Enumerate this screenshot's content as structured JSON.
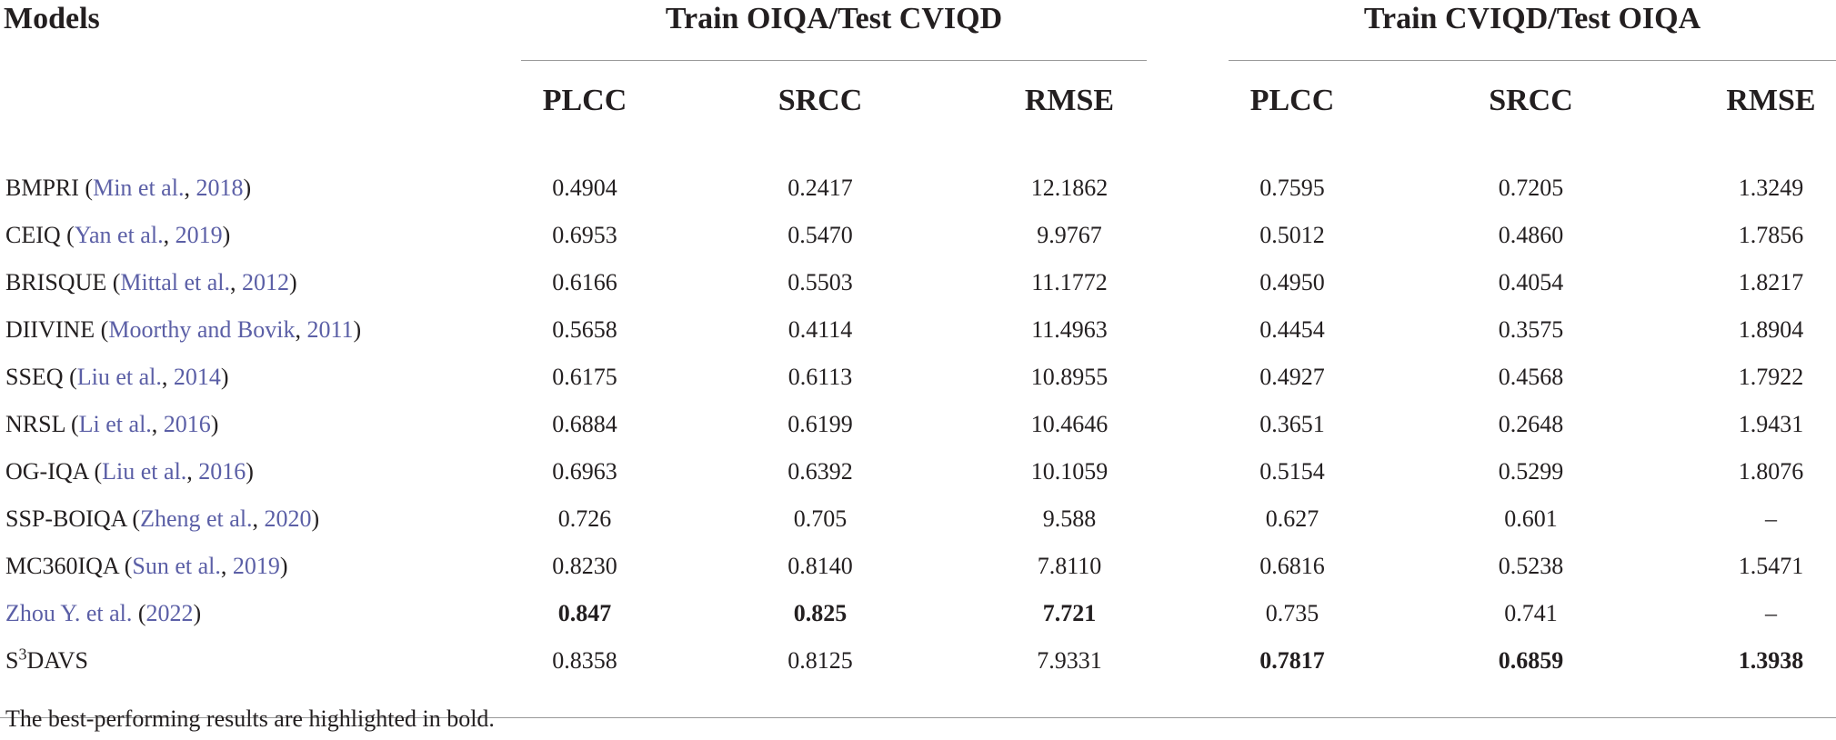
{
  "header": {
    "models_label": "Models",
    "group1_title": "Train OIQA/Test CVIQD",
    "group2_title": "Train CVIQD/Test OIQA",
    "metrics": [
      "PLCC",
      "SRCC",
      "RMSE",
      "PLCC",
      "SRCC",
      "RMSE"
    ]
  },
  "rows": [
    {
      "name": "BMPRI (",
      "ref": "Min et al.",
      "sep": ", ",
      "year": "2018",
      "close": ")",
      "values": [
        "0.4904",
        "0.2417",
        "12.1862",
        "0.7595",
        "0.7205",
        "1.3249"
      ]
    },
    {
      "name": "CEIQ (",
      "ref": "Yan et al.",
      "sep": ", ",
      "year": "2019",
      "close": ")",
      "values": [
        "0.6953",
        "0.5470",
        "9.9767",
        "0.5012",
        "0.4860",
        "1.7856"
      ]
    },
    {
      "name": "BRISQUE (",
      "ref": "Mittal et al.",
      "sep": ", ",
      "year": "2012",
      "close": ")",
      "values": [
        "0.6166",
        "0.5503",
        "11.1772",
        "0.4950",
        "0.4054",
        "1.8217"
      ]
    },
    {
      "name": "DIIVINE (",
      "ref": "Moorthy and Bovik",
      "sep": ", ",
      "year": "2011",
      "close": ")",
      "values": [
        "0.5658",
        "0.4114",
        "11.4963",
        "0.4454",
        "0.3575",
        "1.8904"
      ]
    },
    {
      "name": "SSEQ (",
      "ref": "Liu et al.",
      "sep": ", ",
      "year": "2014",
      "close": ")",
      "values": [
        "0.6175",
        "0.6113",
        "10.8955",
        "0.4927",
        "0.4568",
        "1.7922"
      ]
    },
    {
      "name": "NRSL (",
      "ref": "Li et al.",
      "sep": ", ",
      "year": "2016",
      "close": ")",
      "values": [
        "0.6884",
        "0.6199",
        "10.4646",
        "0.3651",
        "0.2648",
        "1.9431"
      ]
    },
    {
      "name": "OG-IQA (",
      "ref": "Liu et al.",
      "sep": ", ",
      "year": "2016",
      "close": ")",
      "values": [
        "0.6963",
        "0.6392",
        "10.1059",
        "0.5154",
        "0.5299",
        "1.8076"
      ]
    },
    {
      "name": "SSP-BOIQA (",
      "ref": "Zheng et al.",
      "sep": ", ",
      "year": "2020",
      "close": ")",
      "values": [
        "0.726",
        "0.705",
        "9.588",
        "0.627",
        "0.601",
        "–"
      ]
    },
    {
      "name": "MC360IQA (",
      "ref": "Sun et al.",
      "sep": ", ",
      "year": "2019",
      "close": ")",
      "values": [
        "0.8230",
        "0.8140",
        "7.8110",
        "0.6816",
        "0.5238",
        "1.5471"
      ]
    }
  ],
  "zhou_row": {
    "ref": "Zhou Y. et al.",
    "open": " (",
    "year": "2022",
    "close": ")",
    "values": [
      "0.847",
      "0.825",
      "7.721",
      "0.735",
      "0.741",
      "–"
    ]
  },
  "s3_row": {
    "prefix": "S",
    "sup": "3",
    "suffix": "DAVS",
    "values": [
      "0.8358",
      "0.8125",
      "7.9331",
      "0.7817",
      "0.6859",
      "1.3938"
    ]
  },
  "footnote": "The best-performing results are highlighted in bold."
}
